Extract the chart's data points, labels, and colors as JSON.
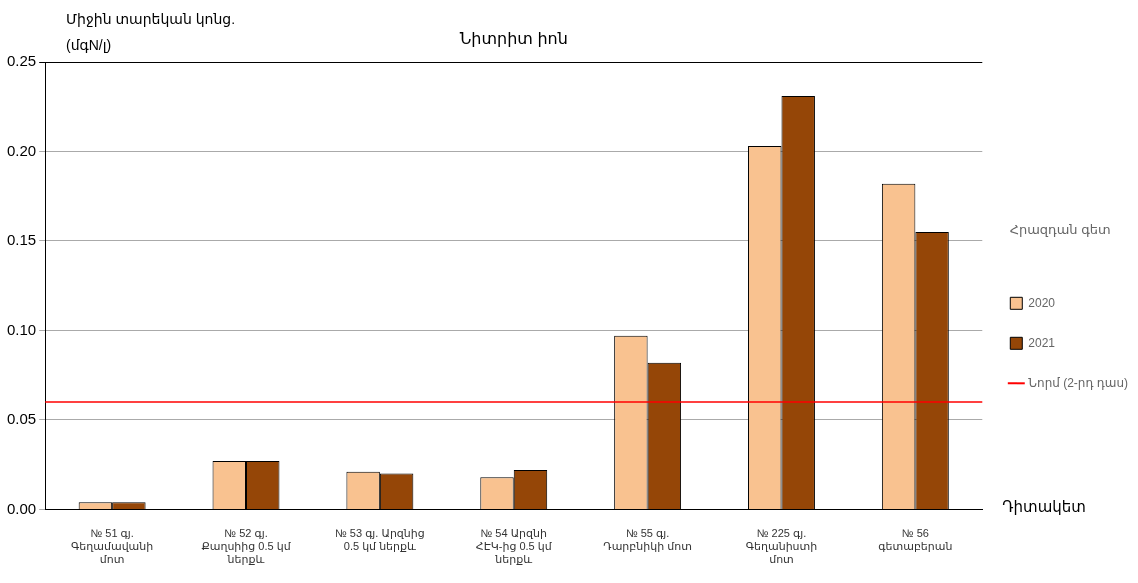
{
  "chart_data": {
    "type": "bar",
    "title": "Նիտրիտ իոն",
    "ylabel": "Միջին տարեկան կոնց. (մգN/լ)",
    "xlabel": "Դիտակետ",
    "legend_title": "Հրազդան գետ",
    "categories": [
      "№ 51 գյ. Գեղամավանի մոտ",
      "№ 52 գյ. Քաղսիից 0.5 կմ ներքև",
      "№ 53 գյ. Արզնից 0.5 կմ ներքև",
      "№ 54 Արզնի ՀԷԿ-ից 0.5 կմ ներքև",
      "№ 55 գյ. Դարբնիկի մոտ",
      "№ 225 գյ. Գեղանիստի մոտ",
      "№ 56 գետաբերան"
    ],
    "series": [
      {
        "name": "2020",
        "color": "#f9c290",
        "values": [
          0.004,
          0.027,
          0.021,
          0.018,
          0.097,
          0.203,
          0.182
        ]
      },
      {
        "name": "2021",
        "color": "#954607",
        "values": [
          0.004,
          0.027,
          0.02,
          0.022,
          0.082,
          0.231,
          0.155
        ]
      }
    ],
    "ylim": [
      0,
      0.25
    ],
    "yticks": [
      {
        "value": 0,
        "label": "0.00"
      },
      {
        "value": 0.05,
        "label": "0.05"
      },
      {
        "value": 0.1,
        "label": "0.10"
      },
      {
        "value": 0.15,
        "label": "0.15"
      },
      {
        "value": 0.2,
        "label": "0.20"
      },
      {
        "value": 0.25,
        "label": "0.25"
      }
    ],
    "ref_lines": [
      {
        "axis": "y",
        "value": 0.06,
        "label": "Նորմ (2-րդ դաս)",
        "color": "#ff0000"
      }
    ],
    "grid": "y",
    "legend": "right"
  }
}
